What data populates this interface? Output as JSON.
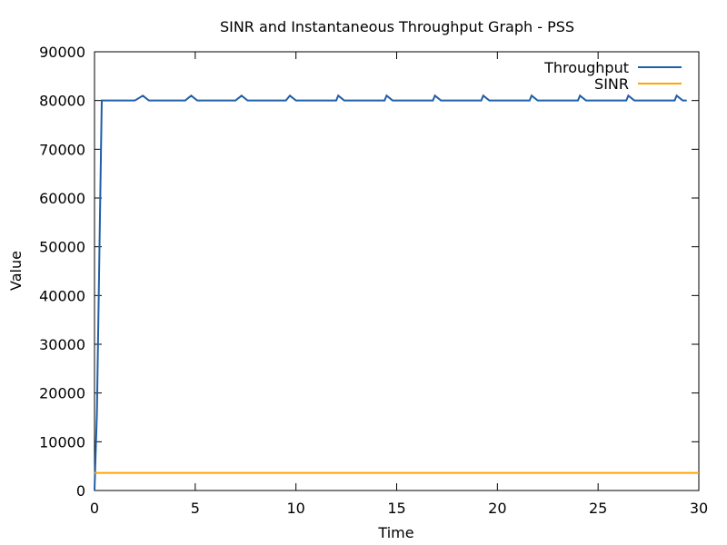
{
  "chart_data": {
    "type": "line",
    "title": "SINR and Instantaneous Throughput Graph - PSS",
    "xlabel": "Time",
    "ylabel": "Value",
    "xlim": [
      0,
      30
    ],
    "ylim": [
      0,
      90000
    ],
    "x_ticks": [
      0,
      5,
      10,
      15,
      20,
      25,
      30
    ],
    "y_ticks": [
      0,
      10000,
      20000,
      30000,
      40000,
      50000,
      60000,
      70000,
      80000,
      90000
    ],
    "grid": false,
    "legend_position": "top-right",
    "series": [
      {
        "name": "Throughput",
        "color": "#1f5fa6",
        "x": [
          0,
          0.12,
          0.24,
          0.36,
          0.48,
          0.6,
          0.8,
          1.0,
          1.5,
          2.0,
          2.4,
          2.7,
          3.0,
          3.5,
          4.0,
          4.5,
          4.8,
          5.1,
          5.5,
          6.0,
          6.5,
          7.0,
          7.3,
          7.6,
          8.0,
          8.5,
          9.0,
          9.5,
          9.7,
          10.0,
          10.5,
          11.0,
          11.5,
          12.0,
          12.1,
          12.4,
          13.0,
          13.5,
          14.0,
          14.4,
          14.5,
          14.8,
          15.5,
          16.0,
          16.5,
          16.8,
          16.9,
          17.2,
          17.8,
          18.4,
          19.0,
          19.2,
          19.3,
          19.6,
          20.2,
          20.8,
          21.4,
          21.6,
          21.7,
          22.0,
          22.6,
          23.2,
          23.8,
          24.0,
          24.1,
          24.4,
          25.0,
          25.6,
          26.2,
          26.4,
          26.5,
          26.8,
          27.4,
          28.0,
          28.6,
          28.8,
          28.9,
          29.2,
          29.4
        ],
        "y": [
          0,
          16000,
          48000,
          80000,
          80000,
          80000,
          80000,
          80000,
          80000,
          80000,
          81000,
          80000,
          80000,
          80000,
          80000,
          80000,
          81000,
          80000,
          80000,
          80000,
          80000,
          80000,
          81000,
          80000,
          80000,
          80000,
          80000,
          80000,
          81000,
          80000,
          80000,
          80000,
          80000,
          80000,
          81000,
          80000,
          80000,
          80000,
          80000,
          80000,
          81000,
          80000,
          80000,
          80000,
          80000,
          80000,
          81000,
          80000,
          80000,
          80000,
          80000,
          80000,
          81000,
          80000,
          80000,
          80000,
          80000,
          80000,
          81000,
          80000,
          80000,
          80000,
          80000,
          80000,
          81000,
          80000,
          80000,
          80000,
          80000,
          80000,
          81000,
          80000,
          80000,
          80000,
          80000,
          80000,
          81000,
          80000,
          80000
        ]
      },
      {
        "name": "SINR",
        "color": "#ffa500",
        "x": [
          0,
          30
        ],
        "y": [
          3600,
          3600
        ]
      }
    ]
  }
}
